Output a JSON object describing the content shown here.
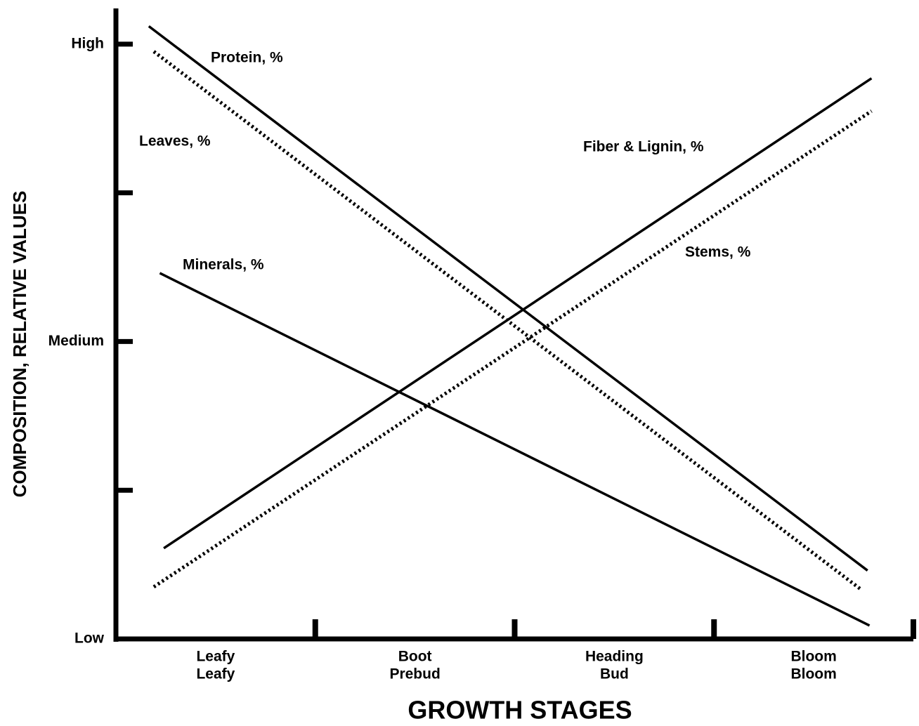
{
  "chart_data": {
    "type": "line",
    "ylabel": "COMPOSITION, RELATIVE VALUES",
    "xlabel": "GROWTH STAGES",
    "categories": [
      "Leafy",
      "Boot",
      "Heading",
      "Bloom"
    ],
    "categories_line2": [
      "Leafy",
      "Prebud",
      "Bud",
      "Bloom"
    ],
    "xlim": [
      -0.5,
      3.5
    ],
    "xminor_ticks": [
      0.5,
      1.5,
      2.5,
      3.5
    ],
    "ylim": [
      0,
      4.24
    ],
    "yticks": [
      {
        "value": 0,
        "label": "Low"
      },
      {
        "value": 2,
        "label": "Medium"
      },
      {
        "value": 4,
        "label": "High"
      }
    ],
    "yminor_ticks": [
      1,
      3
    ],
    "series": [
      {
        "name": "Protein, %",
        "color": "#000000",
        "style": "solid",
        "x": [
          -0.335,
          3.27
        ],
        "values": [
          4.12,
          0.46
        ]
      },
      {
        "name": "Leaves, %",
        "color": "#000000",
        "style": "dotted",
        "x": [
          -0.31,
          3.24
        ],
        "values": [
          3.95,
          0.33
        ]
      },
      {
        "name": "Minerals, %",
        "color": "#000000",
        "style": "solid",
        "x": [
          -0.28,
          3.28
        ],
        "values": [
          2.46,
          0.09
        ]
      },
      {
        "name": "Fiber & Lignin, %",
        "color": "#000000",
        "style": "solid",
        "x": [
          -0.26,
          3.29
        ],
        "values": [
          0.61,
          3.77
        ]
      },
      {
        "name": "Stems, %",
        "color": "#000000",
        "style": "dotted",
        "x": [
          -0.31,
          3.29
        ],
        "values": [
          0.35,
          3.55
        ]
      }
    ]
  }
}
